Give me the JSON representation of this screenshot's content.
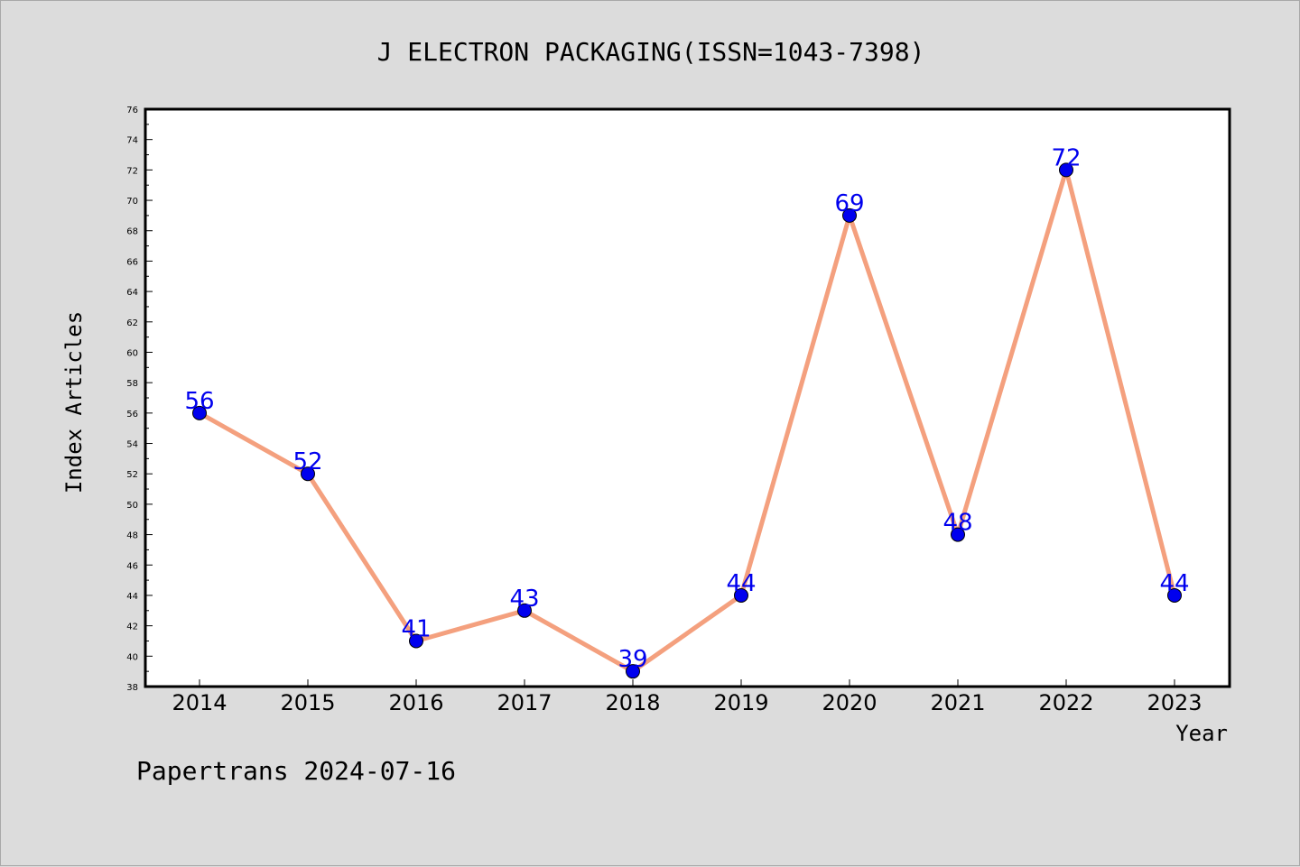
{
  "footer_text": "Papertrans 2024-07-16",
  "colors": {
    "background": "#dcdcdc",
    "plot_background": "#ffffff",
    "line": "#f4a07e",
    "marker": "#0000ee",
    "data_label": "#0000ee"
  },
  "chart_data": {
    "type": "line",
    "title": "J ELECTRON PACKAGING(ISSN=1043-7398)",
    "xlabel": "Year",
    "ylabel": "Index Articles",
    "categories": [
      "2014",
      "2015",
      "2016",
      "2017",
      "2018",
      "2019",
      "2020",
      "2021",
      "2022",
      "2023"
    ],
    "series": [
      {
        "values": [
          56,
          52,
          41,
          43,
          39,
          44,
          69,
          48,
          72,
          44
        ]
      }
    ],
    "ylim": [
      38,
      76
    ],
    "ytick_step": 2,
    "grid": false,
    "legend": "none",
    "data_labels": true
  }
}
